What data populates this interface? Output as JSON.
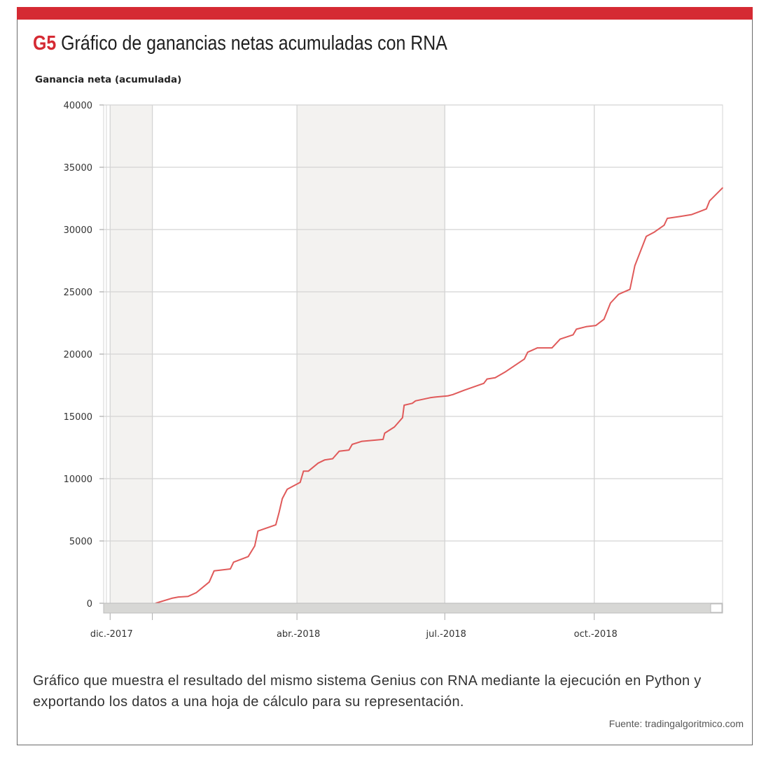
{
  "figure": {
    "number": "G5",
    "title": "Gráfico de ganancias netas acumuladas con RNA",
    "caption": "Gráfico que muestra el resultado del mismo sistema Genius con RNA mediante la ejecución en Python y exportando los datos a una hoja de cálculo para su representación.",
    "source": "Fuente: tradingalgoritmico.com"
  },
  "colors": {
    "accent": "#d52a33",
    "line": "#e05a5a",
    "band": "#f3f2f0",
    "grid": "#d4d4d4"
  },
  "chart_data": {
    "type": "line",
    "title": "Ganancia neta (acumulada)",
    "xlabel": "",
    "ylabel": "",
    "ylim": [
      0,
      40000
    ],
    "xlim": [
      "2017-12-03",
      "2018-12-19"
    ],
    "grid": true,
    "legend": "none",
    "y_ticks": [
      "0",
      "5000",
      "10000",
      "15000",
      "20000",
      "25000",
      "30000",
      "35000",
      "40000"
    ],
    "x_ticks": [
      {
        "date": "2017-12-07",
        "label": "dic.-2017"
      },
      {
        "date": "2018-04-01",
        "label": "abr.-2018"
      },
      {
        "date": "2018-07-01",
        "label": "jul.-2018"
      },
      {
        "date": "2018-10-01",
        "label": "oct.-2018"
      }
    ],
    "shaded_bands": [
      [
        "2017-12-07",
        "2018-01-02"
      ],
      [
        "2018-04-01",
        "2018-07-01"
      ]
    ],
    "series": [
      {
        "x": [
          "2018-01-04",
          "2018-01-14",
          "2018-01-18",
          "2018-01-24",
          "2018-01-29",
          "2018-02-06",
          "2018-02-09",
          "2018-02-19",
          "2018-02-21",
          "2018-03-02",
          "2018-03-06",
          "2018-03-08",
          "2018-03-19",
          "2018-03-21",
          "2018-03-23",
          "2018-03-26",
          "2018-04-03",
          "2018-04-05",
          "2018-04-08",
          "2018-04-14",
          "2018-04-18",
          "2018-04-23",
          "2018-04-27",
          "2018-05-03",
          "2018-05-05",
          "2018-05-11",
          "2018-05-24",
          "2018-05-25",
          "2018-05-31",
          "2018-06-05",
          "2018-06-06",
          "2018-06-11",
          "2018-06-13",
          "2018-06-22",
          "2018-06-25",
          "2018-07-03",
          "2018-07-06",
          "2018-07-13",
          "2018-07-25",
          "2018-07-27",
          "2018-08-01",
          "2018-08-07",
          "2018-08-19",
          "2018-08-21",
          "2018-08-27",
          "2018-09-05",
          "2018-09-10",
          "2018-09-18",
          "2018-09-20",
          "2018-09-26",
          "2018-10-02",
          "2018-10-07",
          "2018-10-11",
          "2018-10-16",
          "2018-10-23",
          "2018-10-26",
          "2018-11-02",
          "2018-11-07",
          "2018-11-13",
          "2018-11-15",
          "2018-11-23",
          "2018-11-30",
          "2018-12-05",
          "2018-12-09",
          "2018-12-11",
          "2018-12-19"
        ],
        "values": [
          0,
          400,
          500,
          550,
          850,
          1700,
          2600,
          2750,
          3300,
          3750,
          4600,
          5800,
          6300,
          7300,
          8400,
          9150,
          9700,
          10600,
          10600,
          11250,
          11500,
          11600,
          12200,
          12300,
          12750,
          13000,
          13150,
          13650,
          14150,
          14900,
          15900,
          16050,
          16250,
          16500,
          16550,
          16650,
          16750,
          17100,
          17650,
          18000,
          18100,
          18550,
          19600,
          20150,
          20500,
          20500,
          21200,
          21550,
          22000,
          22200,
          22300,
          22800,
          24100,
          24800,
          25200,
          27100,
          29450,
          29800,
          30350,
          30900,
          31050,
          31200,
          31450,
          31650,
          32300,
          33350
        ]
      }
    ]
  }
}
